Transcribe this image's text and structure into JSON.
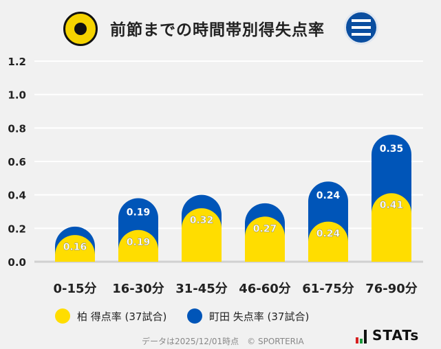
{
  "title": "前節までの時間帯別得失点率",
  "colors": {
    "home": "#ffdd00",
    "away": "#0055b8"
  },
  "chart_data": {
    "type": "bar",
    "stacked": true,
    "categories": [
      "0-15分",
      "16-30分",
      "31-45分",
      "46-60分",
      "61-75分",
      "76-90分"
    ],
    "series": [
      {
        "name": "柏 得点率 (37試合)",
        "values": [
          0.16,
          0.19,
          0.32,
          0.27,
          0.24,
          0.41
        ],
        "labels": [
          "0.16",
          "0.19",
          "0.32",
          "0.27",
          "0.24",
          "0.41"
        ]
      },
      {
        "name": "町田 失点率 (37試合)",
        "values": [
          0.05,
          0.19,
          0.08,
          0.08,
          0.24,
          0.35
        ],
        "labels": [
          "",
          "0.19",
          "",
          "",
          "0.24",
          "0.35"
        ]
      }
    ],
    "ylim": [
      0,
      1.2
    ],
    "yticks": [
      "0.0",
      "0.2",
      "0.4",
      "0.6",
      "0.8",
      "1.0",
      "1.2"
    ],
    "grid": true,
    "legend": "bottom"
  },
  "footer": "データは2025/12/01時点　© SPORTERIA",
  "brand": "STATs"
}
